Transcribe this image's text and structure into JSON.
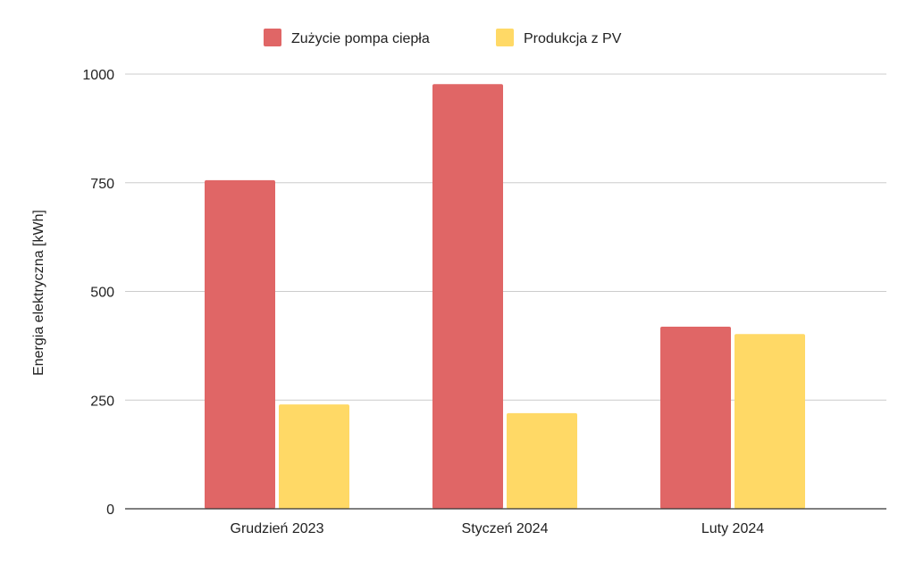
{
  "chart_data": {
    "type": "bar",
    "title": "",
    "xlabel": "",
    "ylabel": "Energia elektryczna [kWh]",
    "ylim": [
      0,
      1000
    ],
    "yticks": [
      0,
      250,
      500,
      750,
      1000
    ],
    "grid": true,
    "legend_position": "top",
    "categories": [
      "Grudzień 2023",
      "Styczeń 2024",
      "Luty 2024"
    ],
    "series": [
      {
        "name": "Zużycie pompa ciepła",
        "color": "#e06666",
        "values": [
          756,
          977,
          419
        ]
      },
      {
        "name": "Produkcja z PV",
        "color": "#ffd966",
        "values": [
          240,
          220,
          402
        ]
      }
    ]
  }
}
